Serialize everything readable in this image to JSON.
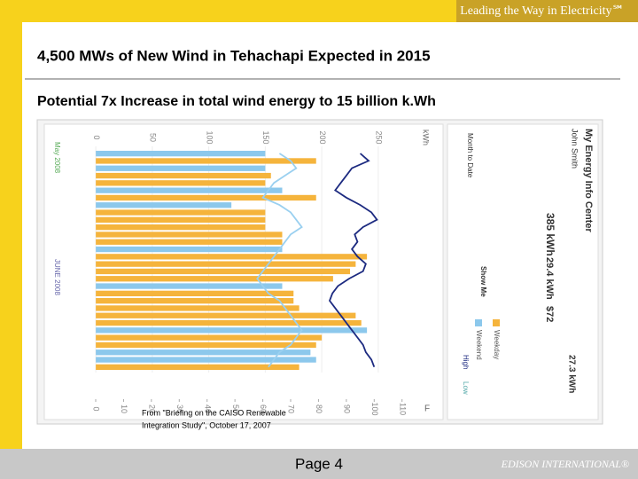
{
  "header": {
    "tagline": "Leading the Way in Electricity℠"
  },
  "title": "4,500 MWs of New Wind in Tehachapi Expected in 2015",
  "subtitle": "Potential 7x Increase in total wind energy to 15 billion k.Wh",
  "figure": {
    "usage_unit": "kWh",
    "usage_ticks": [
      0,
      50,
      100,
      150,
      200,
      250
    ],
    "usage_lim": [
      -15,
      265
    ],
    "temp_unit": "F",
    "temp_ticks": [
      0,
      10,
      20,
      30,
      40,
      50,
      60,
      70,
      80,
      90,
      100,
      110
    ],
    "temp_lim": [
      0,
      112
    ],
    "start_label": "May 2008",
    "mid_label": "JUNE 2008",
    "series": [
      {
        "name": "Weekend",
        "color": "#8cc8ec"
      },
      {
        "name": "Weekday",
        "color": "#f5b43c"
      }
    ],
    "kinds": [
      0,
      1,
      0,
      1,
      1,
      0,
      1,
      0,
      1,
      1,
      1,
      1,
      1,
      0,
      1,
      1,
      1,
      1,
      0,
      1,
      1,
      1,
      1,
      1,
      0,
      1,
      1,
      0,
      0,
      1
    ],
    "usage": [
      150,
      195,
      150,
      155,
      150,
      165,
      195,
      120,
      150,
      150,
      150,
      165,
      165,
      165,
      240,
      230,
      225,
      210,
      165,
      175,
      175,
      180,
      230,
      235,
      240,
      200,
      195,
      190,
      195,
      180
    ],
    "high_name": "High",
    "high": [
      95,
      98,
      92,
      90,
      88,
      86,
      90,
      95,
      99,
      101,
      96,
      93,
      94,
      92,
      94,
      97,
      96,
      91,
      87,
      85,
      84,
      86,
      88,
      90,
      92,
      94,
      96,
      97,
      99,
      100
    ],
    "low_name": "Low",
    "low": [
      66,
      70,
      72,
      68,
      64,
      62,
      60,
      66,
      70,
      72,
      74,
      70,
      68,
      66,
      64,
      62,
      60,
      58,
      60,
      62,
      66,
      68,
      70,
      72,
      74,
      72,
      70,
      66,
      64,
      62
    ],
    "panel": {
      "heading": "My Energy Info Center",
      "name": "John Smith",
      "period": "Month to Date",
      "usage": "385 kWh",
      "daily": "29.4 kWh",
      "cost": "$72",
      "daily_avg": "27.3 kWh",
      "show_me": "Show Me"
    },
    "caption": [
      "From \"Briefing on the CAISO Renewable",
      "Integration Study\", October 17, 2007"
    ]
  },
  "footer": {
    "page": "Page 4",
    "brand": "EDISON INTERNATIONAL®"
  }
}
